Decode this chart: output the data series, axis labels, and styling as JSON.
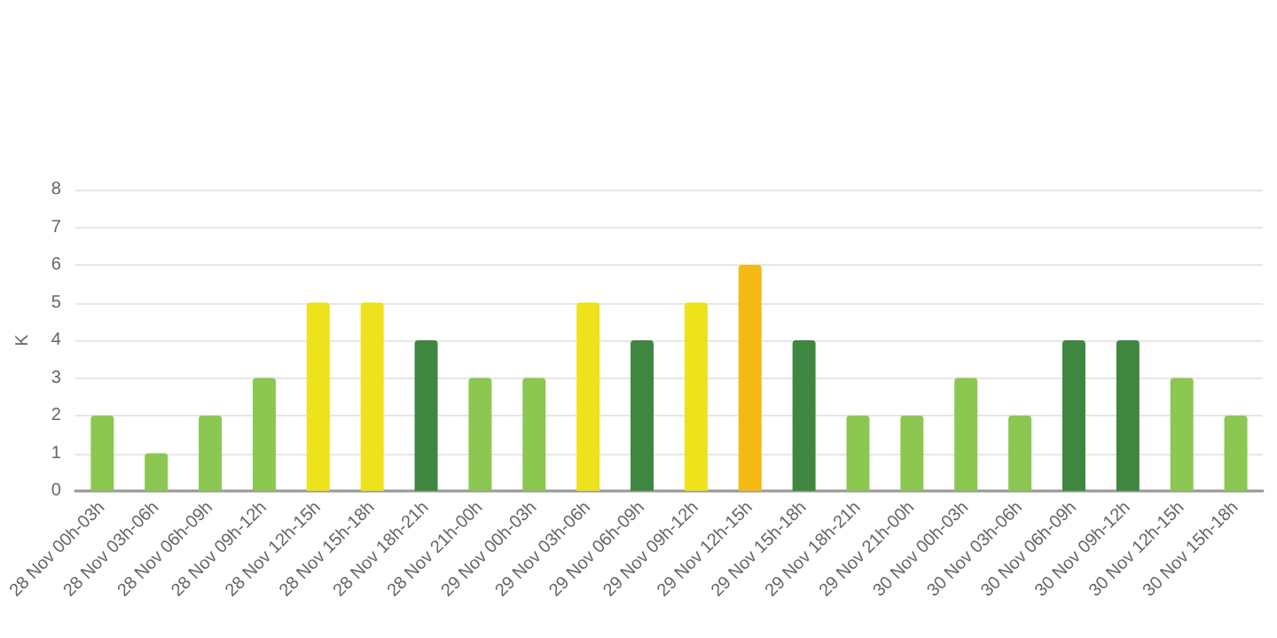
{
  "chart_data": {
    "type": "bar",
    "ylabel": "K",
    "categories": [
      "28 Nov 00h-03h",
      "28 Nov 03h-06h",
      "28 Nov 06h-09h",
      "28 Nov 09h-12h",
      "28 Nov 12h-15h",
      "28 Nov 15h-18h",
      "28 Nov 18h-21h",
      "28 Nov 21h-00h",
      "29 Nov 00h-03h",
      "29 Nov 03h-06h",
      "29 Nov 06h-09h",
      "29 Nov 09h-12h",
      "29 Nov 12h-15h",
      "29 Nov 15h-18h",
      "29 Nov 18h-21h",
      "29 Nov 21h-00h",
      "30 Nov 00h-03h",
      "30 Nov 03h-06h",
      "30 Nov 06h-09h",
      "30 Nov 09h-12h",
      "30 Nov 12h-15h",
      "30 Nov 15h-18h"
    ],
    "values": [
      2,
      1,
      2,
      3,
      5,
      5,
      4,
      3,
      3,
      5,
      4,
      5,
      6,
      4,
      2,
      2,
      3,
      2,
      4,
      4,
      3,
      2
    ],
    "colors": [
      "#8bc751",
      "#8bc751",
      "#8bc751",
      "#8bc751",
      "#ede21c",
      "#ede21c",
      "#3f8741",
      "#8bc751",
      "#8bc751",
      "#ede21c",
      "#3f8741",
      "#ede21c",
      "#f5b914",
      "#3f8741",
      "#8bc751",
      "#8bc751",
      "#8bc751",
      "#8bc751",
      "#3f8741",
      "#3f8741",
      "#8bc751",
      "#8bc751"
    ],
    "ylim": [
      0,
      8
    ],
    "yticks": [
      0,
      1,
      2,
      3,
      4,
      5,
      6,
      7,
      8
    ],
    "grid": "y"
  }
}
